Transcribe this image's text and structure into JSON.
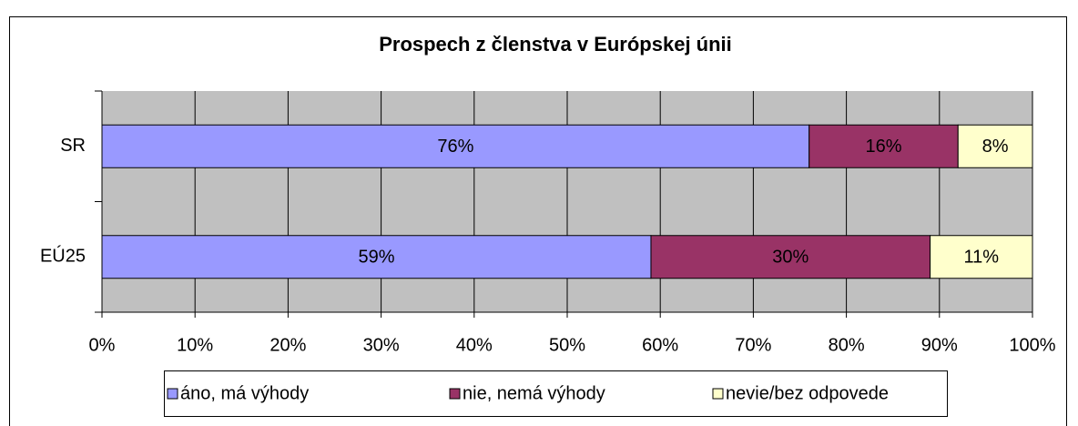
{
  "chart_data": {
    "type": "bar",
    "orientation": "horizontal",
    "stacked": true,
    "title": "Prospech z členstva v Európskej únii",
    "categories": [
      "SR",
      "EÚ25"
    ],
    "series": [
      {
        "name": "áno, má výhody",
        "color": "#9999ff",
        "values": [
          76,
          59
        ],
        "value_labels": [
          "76%",
          "59%"
        ]
      },
      {
        "name": "nie, nemá výhody",
        "color": "#993366",
        "values": [
          16,
          30
        ],
        "value_labels": [
          "16%",
          "30%"
        ]
      },
      {
        "name": "nevie/bez odpovede",
        "color": "#ffffcc",
        "values": [
          8,
          11
        ],
        "value_labels": [
          "8%",
          "11%"
        ]
      }
    ],
    "xlim": [
      0,
      100
    ],
    "xticks": [
      {
        "value": 0,
        "label": "0%"
      },
      {
        "value": 10,
        "label": "10%"
      },
      {
        "value": 20,
        "label": "20%"
      },
      {
        "value": 30,
        "label": "30%"
      },
      {
        "value": 40,
        "label": "40%"
      },
      {
        "value": 50,
        "label": "50%"
      },
      {
        "value": 60,
        "label": "60%"
      },
      {
        "value": 70,
        "label": "70%"
      },
      {
        "value": 80,
        "label": "80%"
      },
      {
        "value": 90,
        "label": "90%"
      },
      {
        "value": 100,
        "label": "100%"
      }
    ],
    "grid": true,
    "legend": "bottom",
    "plot_background": "#c0c0c0"
  }
}
